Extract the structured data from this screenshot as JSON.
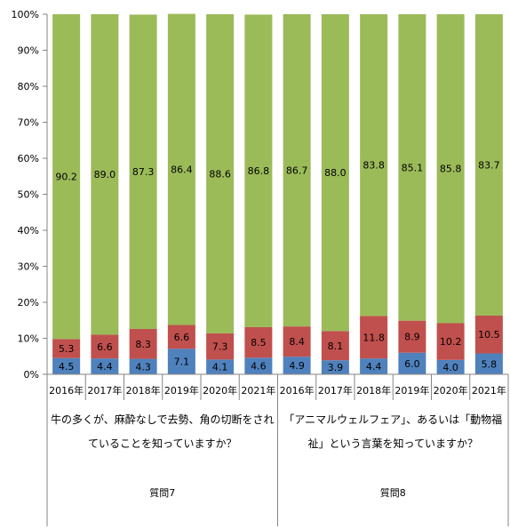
{
  "chart_data": {
    "type": "bar",
    "stacked": true,
    "percent_stacked": true,
    "ylim": [
      0,
      100
    ],
    "y_tick_labels": [
      "0%",
      "10%",
      "20%",
      "30%",
      "40%",
      "50%",
      "60%",
      "70%",
      "80%",
      "90%",
      "100%"
    ],
    "categories": [
      "2016年",
      "2017年",
      "2018年",
      "2019年",
      "2020年",
      "2021年",
      "2016年",
      "2017年",
      "2018年",
      "2019年",
      "2020年",
      "2021年"
    ],
    "groups": [
      {
        "name": "質問7",
        "text_line1": "牛の多くが、麻酔なしで去勢、角の切断をされ",
        "text_line2": "ていることを知っていますか？"
      },
      {
        "name": "質問8",
        "text_line1": "「アニマルウェルフェア」、あるいは「動物福",
        "text_line2": "祉」という言葉を知っていますか？"
      }
    ],
    "series": [
      {
        "color": "#4f81bd",
        "values": [
          4.5,
          4.4,
          4.3,
          7.1,
          4.1,
          4.6,
          4.9,
          3.9,
          4.4,
          6.0,
          4.0,
          5.8
        ],
        "labels": [
          "4.5",
          "4.4",
          "4.3",
          "7.1",
          "4.1",
          "4.6",
          "4.9",
          "3.9",
          "4.4",
          "6.0",
          "4.0",
          "5.8"
        ]
      },
      {
        "color": "#c0504d",
        "values": [
          5.3,
          6.6,
          8.3,
          6.6,
          7.3,
          8.5,
          8.4,
          8.1,
          11.8,
          8.9,
          10.2,
          10.5
        ],
        "labels": [
          "5.3",
          "6.6",
          "8.3",
          "6.6",
          "7.3",
          "8.5",
          "8.4",
          "8.1",
          "11.8",
          "8.9",
          "10.2",
          "10.5"
        ]
      },
      {
        "color": "#9bbb59",
        "values": [
          90.2,
          89.0,
          87.3,
          86.4,
          88.6,
          86.8,
          86.7,
          88.0,
          83.8,
          85.1,
          85.8,
          83.7
        ],
        "labels": [
          "90.2",
          "89.0",
          "87.3",
          "86.4",
          "88.6",
          "86.8",
          "86.7",
          "88.0",
          "83.8",
          "85.1",
          "85.8",
          "83.7"
        ]
      }
    ],
    "grid": false,
    "legend": "none"
  }
}
